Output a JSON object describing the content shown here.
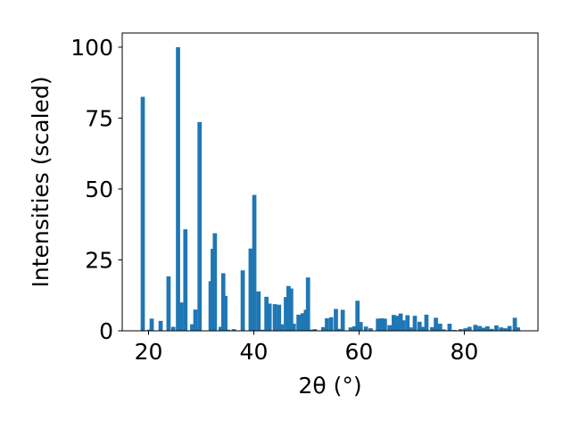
{
  "chart_data": {
    "type": "bar",
    "title": "",
    "xlabel": "2θ (°)",
    "ylabel": "Intensities (scaled)",
    "xlim": [
      15,
      94
    ],
    "ylim": [
      0,
      105
    ],
    "grid": false,
    "bar_color": "#1f77b4",
    "bar_width": 0.8,
    "x_ticks": [
      20,
      40,
      60,
      80
    ],
    "y_ticks": [
      0,
      25,
      50,
      75,
      100
    ],
    "x": [
      18.9,
      20.1,
      20.6,
      22.3,
      23.8,
      24.7,
      25.6,
      26.2,
      27.0,
      28.3,
      28.9,
      29.7,
      31.8,
      32.2,
      32.6,
      33.7,
      34.2,
      34.6,
      35.1,
      36.2,
      37.9,
      39.4,
      40.1,
      40.9,
      41.6,
      42.4,
      43.0,
      44.0,
      44.8,
      45.3,
      46.1,
      46.6,
      47.1,
      47.6,
      48.5,
      49.3,
      49.9,
      50.3,
      50.8,
      51.6,
      53.2,
      53.9,
      54.7,
      55.6,
      56.2,
      56.9,
      58.4,
      59.1,
      59.7,
      60.3,
      61.3,
      62.2,
      63.6,
      64.3,
      64.9,
      65.8,
      66.6,
      67.2,
      67.9,
      68.4,
      69.2,
      69.8,
      70.6,
      71.5,
      72.1,
      72.8,
      73.9,
      74.6,
      75.4,
      76.1,
      77.2,
      78.1,
      79.3,
      80.2,
      81.0,
      82.1,
      82.9,
      83.6,
      84.4,
      85.2,
      86.1,
      87.0,
      87.8,
      88.6,
      89.6,
      90.2
    ],
    "values": [
      82.5,
      0.4,
      4.3,
      3.5,
      19.2,
      1.4,
      100,
      10,
      35.8,
      2.3,
      7.5,
      73.6,
      17.5,
      28.9,
      34.4,
      1.4,
      20.3,
      12.3,
      0.4,
      0.6,
      21.3,
      29,
      47.9,
      13.9,
      0.4,
      12,
      9.6,
      9.4,
      9.2,
      2.3,
      11.9,
      15.8,
      14.9,
      2.5,
      5.7,
      6.2,
      7.4,
      18.8,
      0.4,
      0.6,
      1.3,
      4.4,
      4.8,
      7.7,
      0.7,
      7.4,
      1.2,
      1.6,
      10.6,
      3.1,
      1.5,
      0.9,
      4.3,
      4.4,
      4.3,
      2,
      5.6,
      5.3,
      6.1,
      3.7,
      5.5,
      1.2,
      5.3,
      3.2,
      1.4,
      5.7,
      1.3,
      4.6,
      2.5,
      0.5,
      2.5,
      0.3,
      0.6,
      0.9,
      1.4,
      2.1,
      1.7,
      1.1,
      1.6,
      0.7,
      1.9,
      1.2,
      0.9,
      1.7,
      4.6,
      1.2
    ]
  }
}
